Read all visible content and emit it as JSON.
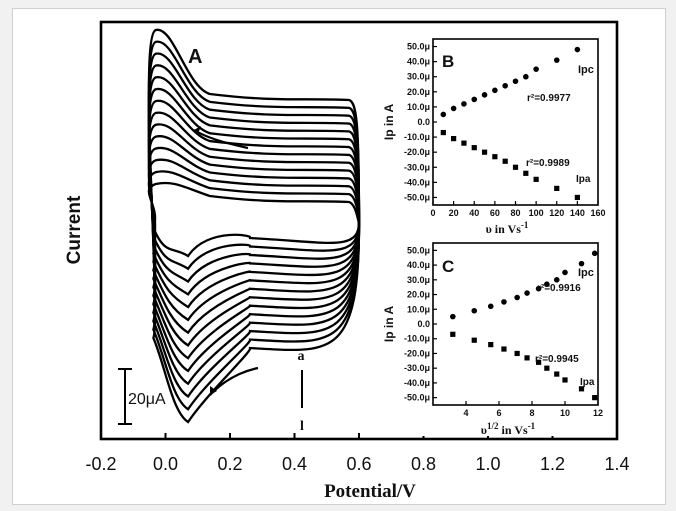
{
  "chart_data": [
    {
      "panel": "A",
      "type": "line",
      "xlabel": "Potential/V",
      "ylabel": "Current",
      "xlim": [
        -0.2,
        1.4
      ],
      "xticks": [
        "-0.2",
        "0.0",
        "0.2",
        "0.4",
        "0.6",
        "0.8",
        "1.0",
        "1.2",
        "1.4"
      ],
      "scale_bar_label": "20μA",
      "arrow_labels": [
        "a",
        "l"
      ],
      "curve_count": 14,
      "potential_window": [
        -0.05,
        0.6
      ],
      "cathodic_peak_potential": 0.07,
      "anodic_peak_potential": -0.03
    },
    {
      "panel": "B",
      "type": "scatter",
      "xlabel": "υ in Vs",
      "xlabel_sup": "-1",
      "ylabel": "Ip in A",
      "xlim": [
        0,
        160
      ],
      "xticks": [
        "0",
        "20",
        "40",
        "60",
        "80",
        "100",
        "120",
        "140",
        "160"
      ],
      "ylim": [
        -55,
        55
      ],
      "yticks": [
        "50.0μ",
        "40.0μ",
        "30.0μ",
        "20.0μ",
        "10.0μ",
        "0.0",
        "-10.0μ",
        "-20.0μ",
        "-30.0μ",
        "-40.0μ",
        "-50.0μ"
      ],
      "series": [
        {
          "name": "Ipc",
          "marker": "circle",
          "r2": "r²=0.9977",
          "x": [
            10,
            20,
            30,
            40,
            50,
            60,
            70,
            80,
            90,
            100,
            120,
            140
          ],
          "y": [
            5,
            9,
            12,
            15,
            18,
            21,
            24,
            27,
            30,
            35,
            41,
            48
          ]
        },
        {
          "name": "Ipa",
          "marker": "square",
          "r2": "r²=0.9989",
          "x": [
            10,
            20,
            30,
            40,
            50,
            60,
            70,
            80,
            90,
            100,
            120,
            140
          ],
          "y": [
            -7,
            -11,
            -14,
            -17,
            -20,
            -23,
            -26,
            -30,
            -34,
            -38,
            -44,
            -50
          ]
        }
      ]
    },
    {
      "panel": "C",
      "type": "scatter",
      "xlabel": "υ",
      "xlabel_sup": "1/2",
      "xlabel_rest": " in Vs",
      "xlabel_sup2": "-1",
      "ylabel": "Ip in A",
      "xlim": [
        2,
        12
      ],
      "xticks": [
        "4",
        "6",
        "8",
        "10",
        "12"
      ],
      "ylim": [
        -55,
        55
      ],
      "yticks": [
        "50.0μ",
        "40.0μ",
        "30.0μ",
        "20.0μ",
        "10.0μ",
        "0.0",
        "-10.0μ",
        "-20.0μ",
        "-30.0μ",
        "-40.0μ",
        "-50.0μ"
      ],
      "series": [
        {
          "name": "Ipc",
          "marker": "circle",
          "r2": "r²=0.9916",
          "x": [
            3.2,
            4.5,
            5.5,
            6.3,
            7.1,
            7.7,
            8.4,
            8.9,
            9.5,
            10.0,
            11.0,
            11.8
          ],
          "y": [
            5,
            9,
            12,
            15,
            18,
            21,
            24,
            27,
            30,
            35,
            41,
            48
          ]
        },
        {
          "name": "Ipa",
          "marker": "square",
          "r2": "r²=0.9945",
          "x": [
            3.2,
            4.5,
            5.5,
            6.3,
            7.1,
            7.7,
            8.4,
            8.9,
            9.5,
            10.0,
            11.0,
            11.8
          ],
          "y": [
            -7,
            -11,
            -14,
            -17,
            -20,
            -23,
            -26,
            -30,
            -34,
            -38,
            -44,
            -50
          ]
        }
      ]
    }
  ]
}
